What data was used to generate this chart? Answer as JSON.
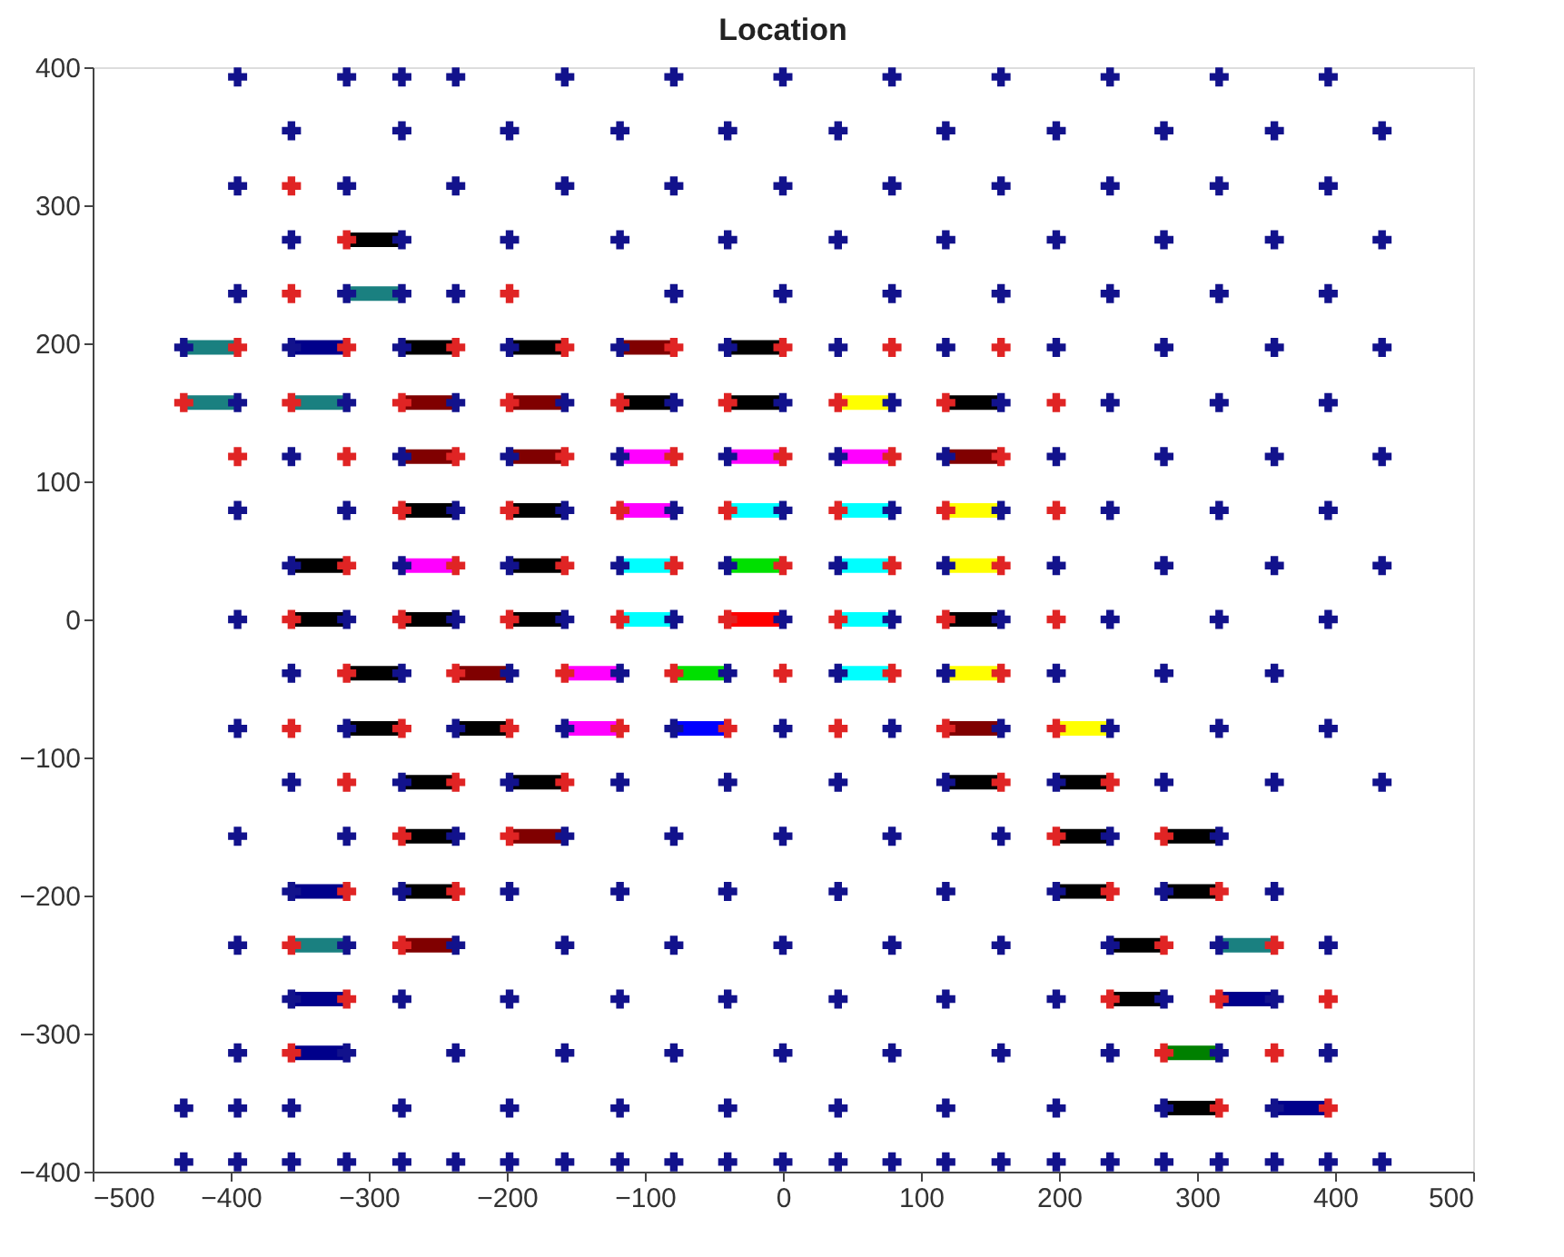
{
  "chart_data": {
    "type": "scatter",
    "title": "Location",
    "xlim": [
      -500,
      500
    ],
    "ylim": [
      -400,
      400
    ],
    "xticks": [
      -500,
      -400,
      -300,
      -200,
      -100,
      0,
      100,
      200,
      300,
      400,
      500
    ],
    "yticks": [
      -400,
      -300,
      -200,
      -100,
      0,
      100,
      200,
      300,
      400
    ],
    "marker": "cross",
    "series": [
      {
        "type": "line",
        "marker": "none",
        "color": "#000000",
        "x": [
          -316,
          -276
        ],
        "values": [
          275,
          275
        ]
      },
      {
        "type": "line",
        "marker": "none",
        "color": "#1a8080",
        "x": [
          -316,
          -276
        ],
        "values": [
          236,
          236
        ]
      },
      {
        "type": "line",
        "marker": "none",
        "color": "#1a8080",
        "x": [
          -434,
          -395
        ],
        "values": [
          197,
          197
        ]
      },
      {
        "type": "line",
        "marker": "none",
        "color": "#00008b",
        "x": [
          -356,
          -316
        ],
        "values": [
          197,
          197
        ]
      },
      {
        "type": "line",
        "marker": "none",
        "color": "#000000",
        "x": [
          -276,
          -237
        ],
        "values": [
          197,
          197
        ]
      },
      {
        "type": "line",
        "marker": "none",
        "color": "#000000",
        "x": [
          -198,
          -158
        ],
        "values": [
          197,
          197
        ]
      },
      {
        "type": "line",
        "marker": "none",
        "color": "#800000",
        "x": [
          -118,
          -79
        ],
        "values": [
          197,
          197
        ]
      },
      {
        "type": "line",
        "marker": "none",
        "color": "#000000",
        "x": [
          -40,
          0
        ],
        "values": [
          197,
          197
        ]
      },
      {
        "type": "line",
        "marker": "none",
        "color": "#1a8080",
        "x": [
          -434,
          -395
        ],
        "values": [
          157,
          157
        ]
      },
      {
        "type": "line",
        "marker": "none",
        "color": "#1a8080",
        "x": [
          -356,
          -316
        ],
        "values": [
          157,
          157
        ]
      },
      {
        "type": "line",
        "marker": "none",
        "color": "#800000",
        "x": [
          -276,
          -237
        ],
        "values": [
          157,
          157
        ]
      },
      {
        "type": "line",
        "marker": "none",
        "color": "#800000",
        "x": [
          -198,
          -158
        ],
        "values": [
          157,
          157
        ]
      },
      {
        "type": "line",
        "marker": "none",
        "color": "#000000",
        "x": [
          -118,
          -79
        ],
        "values": [
          157,
          157
        ]
      },
      {
        "type": "line",
        "marker": "none",
        "color": "#000000",
        "x": [
          -40,
          0
        ],
        "values": [
          157,
          157
        ]
      },
      {
        "type": "line",
        "marker": "none",
        "color": "#ffff00",
        "x": [
          40,
          79
        ],
        "values": [
          157,
          157
        ]
      },
      {
        "type": "line",
        "marker": "none",
        "color": "#000000",
        "x": [
          118,
          158
        ],
        "values": [
          157,
          157
        ]
      },
      {
        "type": "line",
        "marker": "none",
        "color": "#800000",
        "x": [
          -276,
          -237
        ],
        "values": [
          118,
          118
        ]
      },
      {
        "type": "line",
        "marker": "none",
        "color": "#800000",
        "x": [
          -198,
          -158
        ],
        "values": [
          118,
          118
        ]
      },
      {
        "type": "line",
        "marker": "none",
        "color": "#ff00ff",
        "x": [
          -118,
          -79
        ],
        "values": [
          118,
          118
        ]
      },
      {
        "type": "line",
        "marker": "none",
        "color": "#ff00ff",
        "x": [
          -40,
          0
        ],
        "values": [
          118,
          118
        ]
      },
      {
        "type": "line",
        "marker": "none",
        "color": "#ff00ff",
        "x": [
          40,
          79
        ],
        "values": [
          118,
          118
        ]
      },
      {
        "type": "line",
        "marker": "none",
        "color": "#800000",
        "x": [
          118,
          158
        ],
        "values": [
          118,
          118
        ]
      },
      {
        "type": "line",
        "marker": "none",
        "color": "#000000",
        "x": [
          -276,
          -237
        ],
        "values": [
          79,
          79
        ]
      },
      {
        "type": "line",
        "marker": "none",
        "color": "#000000",
        "x": [
          -198,
          -158
        ],
        "values": [
          79,
          79
        ]
      },
      {
        "type": "line",
        "marker": "none",
        "color": "#ff00ff",
        "x": [
          -118,
          -79
        ],
        "values": [
          79,
          79
        ]
      },
      {
        "type": "line",
        "marker": "none",
        "color": "#00ffff",
        "x": [
          -40,
          0
        ],
        "values": [
          79,
          79
        ]
      },
      {
        "type": "line",
        "marker": "none",
        "color": "#00ffff",
        "x": [
          40,
          79
        ],
        "values": [
          79,
          79
        ]
      },
      {
        "type": "line",
        "marker": "none",
        "color": "#ffff00",
        "x": [
          118,
          158
        ],
        "values": [
          79,
          79
        ]
      },
      {
        "type": "line",
        "marker": "none",
        "color": "#000000",
        "x": [
          -356,
          -316
        ],
        "values": [
          39,
          39
        ]
      },
      {
        "type": "line",
        "marker": "none",
        "color": "#ff00ff",
        "x": [
          -276,
          -237
        ],
        "values": [
          39,
          39
        ]
      },
      {
        "type": "line",
        "marker": "none",
        "color": "#000000",
        "x": [
          -198,
          -158
        ],
        "values": [
          39,
          39
        ]
      },
      {
        "type": "line",
        "marker": "none",
        "color": "#00ffff",
        "x": [
          -118,
          -79
        ],
        "values": [
          39,
          39
        ]
      },
      {
        "type": "line",
        "marker": "none",
        "color": "#00e000",
        "x": [
          -40,
          0
        ],
        "values": [
          39,
          39
        ]
      },
      {
        "type": "line",
        "marker": "none",
        "color": "#00ffff",
        "x": [
          40,
          79
        ],
        "values": [
          39,
          39
        ]
      },
      {
        "type": "line",
        "marker": "none",
        "color": "#ffff00",
        "x": [
          118,
          158
        ],
        "values": [
          39,
          39
        ]
      },
      {
        "type": "line",
        "marker": "none",
        "color": "#000000",
        "x": [
          -356,
          -316
        ],
        "values": [
          0,
          0
        ]
      },
      {
        "type": "line",
        "marker": "none",
        "color": "#000000",
        "x": [
          -276,
          -237
        ],
        "values": [
          0,
          0
        ]
      },
      {
        "type": "line",
        "marker": "none",
        "color": "#000000",
        "x": [
          -198,
          -158
        ],
        "values": [
          0,
          0
        ]
      },
      {
        "type": "line",
        "marker": "none",
        "color": "#00ffff",
        "x": [
          -118,
          -79
        ],
        "values": [
          0,
          0
        ]
      },
      {
        "type": "line",
        "marker": "none",
        "color": "#ff0000",
        "x": [
          -40,
          0
        ],
        "values": [
          0,
          0
        ]
      },
      {
        "type": "line",
        "marker": "none",
        "color": "#00ffff",
        "x": [
          40,
          79
        ],
        "values": [
          0,
          0
        ]
      },
      {
        "type": "line",
        "marker": "none",
        "color": "#000000",
        "x": [
          118,
          158
        ],
        "values": [
          0,
          0
        ]
      },
      {
        "type": "line",
        "marker": "none",
        "color": "#000000",
        "x": [
          -316,
          -276
        ],
        "values": [
          -39,
          -39
        ]
      },
      {
        "type": "line",
        "marker": "none",
        "color": "#800000",
        "x": [
          -237,
          -198
        ],
        "values": [
          -39,
          -39
        ]
      },
      {
        "type": "line",
        "marker": "none",
        "color": "#ff00ff",
        "x": [
          -158,
          -118
        ],
        "values": [
          -39,
          -39
        ]
      },
      {
        "type": "line",
        "marker": "none",
        "color": "#00e000",
        "x": [
          -79,
          -40
        ],
        "values": [
          -39,
          -39
        ]
      },
      {
        "type": "line",
        "marker": "none",
        "color": "#00ffff",
        "x": [
          40,
          79
        ],
        "values": [
          -39,
          -39
        ]
      },
      {
        "type": "line",
        "marker": "none",
        "color": "#ffff00",
        "x": [
          118,
          158
        ],
        "values": [
          -39,
          -39
        ]
      },
      {
        "type": "line",
        "marker": "none",
        "color": "#000000",
        "x": [
          -316,
          -276
        ],
        "values": [
          -79,
          -79
        ]
      },
      {
        "type": "line",
        "marker": "none",
        "color": "#000000",
        "x": [
          -237,
          -198
        ],
        "values": [
          -79,
          -79
        ]
      },
      {
        "type": "line",
        "marker": "none",
        "color": "#ff00ff",
        "x": [
          -158,
          -118
        ],
        "values": [
          -79,
          -79
        ]
      },
      {
        "type": "line",
        "marker": "none",
        "color": "#0000ff",
        "x": [
          -79,
          -40
        ],
        "values": [
          -79,
          -79
        ]
      },
      {
        "type": "line",
        "marker": "none",
        "color": "#800000",
        "x": [
          118,
          158
        ],
        "values": [
          -79,
          -79
        ]
      },
      {
        "type": "line",
        "marker": "none",
        "color": "#ffff00",
        "x": [
          198,
          237
        ],
        "values": [
          -79,
          -79
        ]
      },
      {
        "type": "line",
        "marker": "none",
        "color": "#000000",
        "x": [
          -276,
          -237
        ],
        "values": [
          -118,
          -118
        ]
      },
      {
        "type": "line",
        "marker": "none",
        "color": "#000000",
        "x": [
          -198,
          -158
        ],
        "values": [
          -118,
          -118
        ]
      },
      {
        "type": "line",
        "marker": "none",
        "color": "#000000",
        "x": [
          118,
          158
        ],
        "values": [
          -118,
          -118
        ]
      },
      {
        "type": "line",
        "marker": "none",
        "color": "#000000",
        "x": [
          198,
          237
        ],
        "values": [
          -118,
          -118
        ]
      },
      {
        "type": "line",
        "marker": "none",
        "color": "#000000",
        "x": [
          -276,
          -237
        ],
        "values": [
          -157,
          -157
        ]
      },
      {
        "type": "line",
        "marker": "none",
        "color": "#800000",
        "x": [
          -198,
          -158
        ],
        "values": [
          -157,
          -157
        ]
      },
      {
        "type": "line",
        "marker": "none",
        "color": "#000000",
        "x": [
          198,
          237
        ],
        "values": [
          -157,
          -157
        ]
      },
      {
        "type": "line",
        "marker": "none",
        "color": "#000000",
        "x": [
          276,
          316
        ],
        "values": [
          -157,
          -157
        ]
      },
      {
        "type": "line",
        "marker": "none",
        "color": "#00008b",
        "x": [
          -356,
          -316
        ],
        "values": [
          -197,
          -197
        ]
      },
      {
        "type": "line",
        "marker": "none",
        "color": "#000000",
        "x": [
          -276,
          -237
        ],
        "values": [
          -197,
          -197
        ]
      },
      {
        "type": "line",
        "marker": "none",
        "color": "#000000",
        "x": [
          198,
          237
        ],
        "values": [
          -197,
          -197
        ]
      },
      {
        "type": "line",
        "marker": "none",
        "color": "#000000",
        "x": [
          276,
          316
        ],
        "values": [
          -197,
          -197
        ]
      },
      {
        "type": "line",
        "marker": "none",
        "color": "#1a8080",
        "x": [
          -356,
          -316
        ],
        "values": [
          -236,
          -236
        ]
      },
      {
        "type": "line",
        "marker": "none",
        "color": "#800000",
        "x": [
          -276,
          -237
        ],
        "values": [
          -236,
          -236
        ]
      },
      {
        "type": "line",
        "marker": "none",
        "color": "#000000",
        "x": [
          237,
          276
        ],
        "values": [
          -236,
          -236
        ]
      },
      {
        "type": "line",
        "marker": "none",
        "color": "#1a8080",
        "x": [
          316,
          356
        ],
        "values": [
          -236,
          -236
        ]
      },
      {
        "type": "line",
        "marker": "none",
        "color": "#00008b",
        "x": [
          -356,
          -316
        ],
        "values": [
          -275,
          -275
        ]
      },
      {
        "type": "line",
        "marker": "none",
        "color": "#000000",
        "x": [
          237,
          276
        ],
        "values": [
          -275,
          -275
        ]
      },
      {
        "type": "line",
        "marker": "none",
        "color": "#00008b",
        "x": [
          316,
          356
        ],
        "values": [
          -275,
          -275
        ]
      },
      {
        "type": "line",
        "marker": "none",
        "color": "#00008b",
        "x": [
          -356,
          -316
        ],
        "values": [
          -314,
          -314
        ]
      },
      {
        "type": "line",
        "marker": "none",
        "color": "#008000",
        "x": [
          276,
          316
        ],
        "values": [
          -314,
          -314
        ]
      },
      {
        "type": "line",
        "marker": "none",
        "color": "#000000",
        "x": [
          276,
          316
        ],
        "values": [
          -354,
          -354
        ]
      },
      {
        "type": "line",
        "marker": "none",
        "color": "#00008b",
        "x": [
          356,
          395
        ],
        "values": [
          -354,
          -354
        ]
      },
      {
        "color": "#12128c",
        "x": [
          -395,
          -316,
          -276,
          -237,
          -158,
          -79,
          0,
          79,
          158,
          237,
          316,
          395
        ],
        "values": [
          393,
          393,
          393,
          393,
          393,
          393,
          393,
          393,
          393,
          393,
          393,
          393
        ]
      },
      {
        "color": "#12128c",
        "x": [
          -356,
          -276,
          -198,
          -118,
          -40,
          40,
          118,
          198,
          276,
          356,
          434
        ],
        "values": [
          354,
          354,
          354,
          354,
          354,
          354,
          354,
          354,
          354,
          354,
          354
        ]
      },
      {
        "color": "#12128c",
        "x": [
          -395,
          -316,
          -237,
          -158,
          -79,
          0,
          79,
          158,
          237,
          316,
          395
        ],
        "values": [
          314,
          314,
          314,
          314,
          314,
          314,
          314,
          314,
          314,
          314,
          314
        ]
      },
      {
        "color": "#12128c",
        "x": [
          -356,
          -276,
          -198,
          -118,
          -40,
          40,
          118,
          198,
          276,
          356,
          434
        ],
        "values": [
          275,
          275,
          275,
          275,
          275,
          275,
          275,
          275,
          275,
          275,
          275
        ]
      },
      {
        "color": "#12128c",
        "x": [
          -395,
          -316,
          -276,
          -237,
          -79,
          0,
          79,
          158,
          237,
          316,
          395
        ],
        "values": [
          236,
          236,
          236,
          236,
          236,
          236,
          236,
          236,
          236,
          236,
          236
        ]
      },
      {
        "color": "#12128c",
        "x": [
          -434,
          -356,
          -276,
          -198,
          -118,
          -40,
          40,
          118,
          198,
          276,
          356,
          434
        ],
        "values": [
          197,
          197,
          197,
          197,
          197,
          197,
          197,
          197,
          197,
          197,
          197,
          197
        ]
      },
      {
        "color": "#12128c",
        "x": [
          -395,
          -316,
          -237,
          -158,
          -79,
          0,
          79,
          158,
          237,
          316,
          395
        ],
        "values": [
          157,
          157,
          157,
          157,
          157,
          157,
          157,
          157,
          157,
          157,
          157
        ]
      },
      {
        "color": "#12128c",
        "x": [
          -356,
          -276,
          -198,
          -118,
          -40,
          40,
          118,
          198,
          276,
          356,
          434
        ],
        "values": [
          118,
          118,
          118,
          118,
          118,
          118,
          118,
          118,
          118,
          118,
          118
        ]
      },
      {
        "color": "#12128c",
        "x": [
          -395,
          -316,
          -237,
          -158,
          -79,
          0,
          79,
          158,
          237,
          316,
          395
        ],
        "values": [
          79,
          79,
          79,
          79,
          79,
          79,
          79,
          79,
          79,
          79,
          79
        ]
      },
      {
        "color": "#12128c",
        "x": [
          -356,
          -276,
          -198,
          -118,
          -40,
          40,
          118,
          198,
          276,
          356,
          434
        ],
        "values": [
          39,
          39,
          39,
          39,
          39,
          39,
          39,
          39,
          39,
          39,
          39
        ]
      },
      {
        "color": "#12128c",
        "x": [
          -395,
          -316,
          -237,
          -158,
          -79,
          0,
          79,
          158,
          237,
          316,
          395
        ],
        "values": [
          0,
          0,
          0,
          0,
          0,
          0,
          0,
          0,
          0,
          0,
          0
        ]
      },
      {
        "color": "#12128c",
        "x": [
          -356,
          -276,
          -198,
          -118,
          -40,
          40,
          118,
          198,
          276,
          356
        ],
        "values": [
          -39,
          -39,
          -39,
          -39,
          -39,
          -39,
          -39,
          -39,
          -39,
          -39
        ]
      },
      {
        "color": "#12128c",
        "x": [
          -395,
          -316,
          -237,
          -158,
          -79,
          0,
          79,
          158,
          237,
          316,
          395
        ],
        "values": [
          -79,
          -79,
          -79,
          -79,
          -79,
          -79,
          -79,
          -79,
          -79,
          -79,
          -79
        ]
      },
      {
        "color": "#12128c",
        "x": [
          -356,
          -276,
          -198,
          -118,
          -40,
          40,
          118,
          198,
          276,
          356,
          434
        ],
        "values": [
          -118,
          -118,
          -118,
          -118,
          -118,
          -118,
          -118,
          -118,
          -118,
          -118,
          -118
        ]
      },
      {
        "color": "#12128c",
        "x": [
          -395,
          -316,
          -237,
          -158,
          -79,
          0,
          79,
          158,
          237,
          316
        ],
        "values": [
          -157,
          -157,
          -157,
          -157,
          -157,
          -157,
          -157,
          -157,
          -157,
          -157
        ]
      },
      {
        "color": "#12128c",
        "x": [
          -356,
          -276,
          -198,
          -118,
          -40,
          40,
          118,
          198,
          276,
          356
        ],
        "values": [
          -197,
          -197,
          -197,
          -197,
          -197,
          -197,
          -197,
          -197,
          -197,
          -197
        ]
      },
      {
        "color": "#12128c",
        "x": [
          -395,
          -316,
          -237,
          -158,
          -79,
          0,
          79,
          158,
          237,
          316,
          395
        ],
        "values": [
          -236,
          -236,
          -236,
          -236,
          -236,
          -236,
          -236,
          -236,
          -236,
          -236,
          -236
        ]
      },
      {
        "color": "#12128c",
        "x": [
          -356,
          -276,
          -198,
          -118,
          -40,
          40,
          118,
          198,
          276,
          356
        ],
        "values": [
          -275,
          -275,
          -275,
          -275,
          -275,
          -275,
          -275,
          -275,
          -275,
          -275
        ]
      },
      {
        "color": "#12128c",
        "x": [
          -395,
          -316,
          -237,
          -158,
          -79,
          0,
          79,
          158,
          237,
          316,
          395
        ],
        "values": [
          -314,
          -314,
          -314,
          -314,
          -314,
          -314,
          -314,
          -314,
          -314,
          -314,
          -314
        ]
      },
      {
        "color": "#12128c",
        "x": [
          -434,
          -395,
          -356,
          -276,
          -198,
          -118,
          -40,
          40,
          118,
          198,
          276,
          356
        ],
        "values": [
          -354,
          -354,
          -354,
          -354,
          -354,
          -354,
          -354,
          -354,
          -354,
          -354,
          -354,
          -354
        ]
      },
      {
        "color": "#12128c",
        "x": [
          -434,
          -395,
          -356,
          -316,
          -276,
          -237,
          -198,
          -158,
          -118,
          -79,
          -40,
          0,
          40,
          79,
          118,
          158,
          198,
          237,
          276,
          316,
          356,
          395,
          434
        ],
        "values": [
          -393,
          -393,
          -393,
          -393,
          -393,
          -393,
          -393,
          -393,
          -393,
          -393,
          -393,
          -393,
          -393,
          -393,
          -393,
          -393,
          -393,
          -393,
          -393,
          -393,
          -393,
          -393,
          -393
        ]
      },
      {
        "color": "#e02424",
        "x": [
          -356,
          -316,
          -356,
          -198
        ],
        "values": [
          314,
          275,
          236,
          236
        ]
      },
      {
        "color": "#e02424",
        "x": [
          -395,
          -316,
          -237,
          -158,
          -79,
          0,
          79,
          158
        ],
        "values": [
          197,
          197,
          197,
          197,
          197,
          197,
          197,
          197
        ]
      },
      {
        "color": "#e02424",
        "x": [
          -434,
          -356,
          -276,
          -198,
          -118,
          -40,
          40,
          118,
          198
        ],
        "values": [
          157,
          157,
          157,
          157,
          157,
          157,
          157,
          157,
          157
        ]
      },
      {
        "color": "#e02424",
        "x": [
          -395,
          -316,
          -237,
          -158,
          -79,
          0,
          79,
          158
        ],
        "values": [
          118,
          118,
          118,
          118,
          118,
          118,
          118,
          118
        ]
      },
      {
        "color": "#e02424",
        "x": [
          -276,
          -198,
          -118,
          -40,
          40,
          118,
          198
        ],
        "values": [
          79,
          79,
          79,
          79,
          79,
          79,
          79
        ]
      },
      {
        "color": "#e02424",
        "x": [
          -316,
          -237,
          -158,
          -79,
          0,
          79,
          158
        ],
        "values": [
          39,
          39,
          39,
          39,
          39,
          39,
          39
        ]
      },
      {
        "color": "#e02424",
        "x": [
          -356,
          -276,
          -198,
          -118,
          -40,
          40,
          118,
          198
        ],
        "values": [
          0,
          0,
          0,
          0,
          0,
          0,
          0,
          0
        ]
      },
      {
        "color": "#e02424",
        "x": [
          -316,
          -237,
          -158,
          -79,
          0,
          79,
          158
        ],
        "values": [
          -39,
          -39,
          -39,
          -39,
          -39,
          -39,
          -39
        ]
      },
      {
        "color": "#e02424",
        "x": [
          -356,
          -276,
          -198,
          -118,
          -40,
          40,
          118,
          198
        ],
        "values": [
          -79,
          -79,
          -79,
          -79,
          -79,
          -79,
          -79,
          -79
        ]
      },
      {
        "color": "#e02424",
        "x": [
          -316,
          -237,
          -158,
          158,
          237,
          -276,
          -198,
          198,
          276
        ],
        "values": [
          -118,
          -118,
          -118,
          -118,
          -118,
          -157,
          -157,
          -157,
          -157
        ]
      },
      {
        "color": "#e02424",
        "x": [
          -316,
          -237,
          237,
          316,
          -356,
          -276,
          276,
          356
        ],
        "values": [
          -197,
          -197,
          -197,
          -197,
          -236,
          -236,
          -236,
          -236
        ]
      },
      {
        "color": "#e02424",
        "x": [
          -316,
          237,
          316,
          395,
          -356,
          276,
          356,
          316,
          395
        ],
        "values": [
          -275,
          -275,
          -275,
          -275,
          -314,
          -314,
          -314,
          -354,
          -354
        ]
      }
    ]
  }
}
